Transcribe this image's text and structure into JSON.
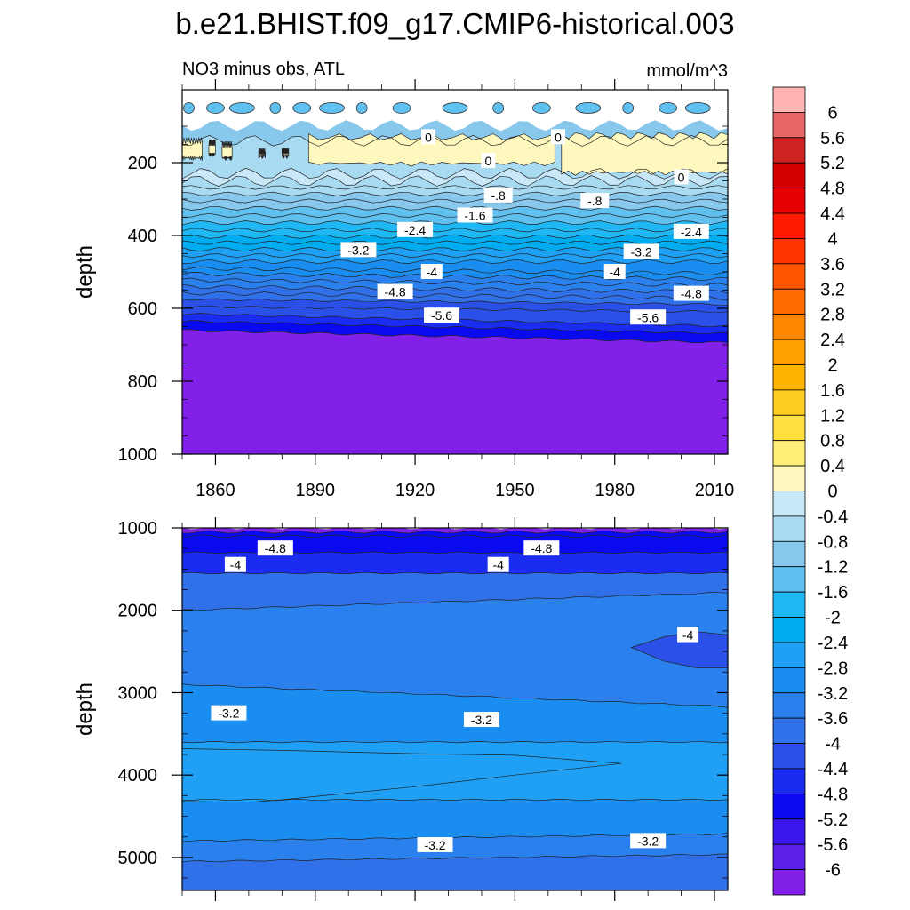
{
  "title": "b.e21.BHIST.f09_g17.CMIP6-historical.003",
  "chart_data": [
    {
      "type": "contour",
      "panel": "upper",
      "subtitle_left": "NO3 minus obs, ATL",
      "subtitle_right": "mmol/m^3",
      "ylabel": "depth",
      "xlabel": "",
      "xlim": [
        1850,
        2014
      ],
      "ylim": [
        1000,
        0
      ],
      "xticks": [
        1860,
        1890,
        1920,
        1950,
        1980,
        2010
      ],
      "yticks": [
        200,
        400,
        600,
        800,
        1000
      ],
      "contour_bands": [
        {
          "depth": 98,
          "value": -1.0
        },
        {
          "depth": 140,
          "value": -0.6
        },
        {
          "depth": 230,
          "value": -0.2
        },
        {
          "depth": 250,
          "value": -0.5
        },
        {
          "depth": 268,
          "value": -0.7
        },
        {
          "depth": 286,
          "value": -0.9
        },
        {
          "depth": 305,
          "value": -1.1
        },
        {
          "depth": 325,
          "value": -1.3
        },
        {
          "depth": 345,
          "value": -1.5
        },
        {
          "depth": 365,
          "value": -1.7
        },
        {
          "depth": 385,
          "value": -1.9
        },
        {
          "depth": 403,
          "value": -2.1
        },
        {
          "depth": 420,
          "value": -2.3
        },
        {
          "depth": 438,
          "value": -2.5
        },
        {
          "depth": 455,
          "value": -2.7
        },
        {
          "depth": 472,
          "value": -2.9
        },
        {
          "depth": 490,
          "value": -3.1
        },
        {
          "depth": 505,
          "value": -3.3
        },
        {
          "depth": 522,
          "value": -3.5
        },
        {
          "depth": 540,
          "value": -3.7
        },
        {
          "depth": 558,
          "value": -3.9
        },
        {
          "depth": 575,
          "value": -4.1
        },
        {
          "depth": 595,
          "value": -4.3
        },
        {
          "depth": 615,
          "value": -4.6
        },
        {
          "depth": 635,
          "value": -5.2
        },
        {
          "depth": 660,
          "value": -6.2
        }
      ],
      "contour_labels": [
        {
          "text": "0",
          "x": 1924,
          "y": 130
        },
        {
          "text": "0",
          "x": 1963,
          "y": 130
        },
        {
          "text": "0",
          "x": 1942,
          "y": 195
        },
        {
          "text": "0",
          "x": 2000,
          "y": 240
        },
        {
          "text": "-.8",
          "x": 1945,
          "y": 290
        },
        {
          "text": "-.8",
          "x": 1974,
          "y": 305
        },
        {
          "text": "-1.6",
          "x": 1938,
          "y": 345
        },
        {
          "text": "-2.4",
          "x": 1920,
          "y": 385
        },
        {
          "text": "-2.4",
          "x": 2003,
          "y": 390
        },
        {
          "text": "-3.2",
          "x": 1903,
          "y": 440
        },
        {
          "text": "-3.2",
          "x": 1988,
          "y": 445
        },
        {
          "text": "-4",
          "x": 1925,
          "y": 500
        },
        {
          "text": "-4",
          "x": 1980,
          "y": 500
        },
        {
          "text": "-4.8",
          "x": 1914,
          "y": 555
        },
        {
          "text": "-4.8",
          "x": 2003,
          "y": 560
        },
        {
          "text": "-5.6",
          "x": 1928,
          "y": 620
        },
        {
          "text": "-5.6",
          "x": 1990,
          "y": 625
        }
      ]
    },
    {
      "type": "contour",
      "panel": "lower",
      "ylabel": "depth",
      "xlabel": "",
      "xlim": [
        1850,
        2014
      ],
      "ylim": [
        5400,
        1000
      ],
      "yticks": [
        1000,
        2000,
        3000,
        4000,
        5000
      ],
      "contour_bands": [
        {
          "depth": 1000,
          "value": -6.2
        },
        {
          "depth": 1050,
          "value": -5.2
        },
        {
          "depth": 1100,
          "value": -4.9
        },
        {
          "depth": 1300,
          "value": -4.5
        },
        {
          "depth": 1550,
          "value": -3.8
        },
        {
          "depth": 2000,
          "value": -3.4
        },
        {
          "depth": 2900,
          "value": -3.0
        },
        {
          "depth": 3600,
          "value": -2.6
        },
        {
          "depth": 4300,
          "value": -3.0
        },
        {
          "depth": 4800,
          "value": -3.4
        },
        {
          "depth": 5050,
          "value": -3.8
        }
      ],
      "contour_labels": [
        {
          "text": "-4.8",
          "x": 1878,
          "y": 1250
        },
        {
          "text": "-4.8",
          "x": 1958,
          "y": 1250
        },
        {
          "text": "-4",
          "x": 1866,
          "y": 1450
        },
        {
          "text": "-4",
          "x": 1945,
          "y": 1450
        },
        {
          "text": "-4",
          "x": 2002,
          "y": 2300
        },
        {
          "text": "-3.2",
          "x": 1864,
          "y": 3250
        },
        {
          "text": "-3.2",
          "x": 1940,
          "y": 3330
        },
        {
          "text": "-3.2",
          "x": 1926,
          "y": 4850
        },
        {
          "text": "-3.2",
          "x": 1990,
          "y": 4800
        }
      ]
    }
  ],
  "colorbar": {
    "labels": [
      "6",
      "5.6",
      "5.2",
      "4.8",
      "4.4",
      "4",
      "3.6",
      "3.2",
      "2.8",
      "2.4",
      "2",
      "1.6",
      "1.2",
      "0.8",
      "0.4",
      "0",
      "-0.4",
      "-0.8",
      "-1.2",
      "-1.6",
      "-2",
      "-2.4",
      "-2.8",
      "-3.2",
      "-3.6",
      "-4",
      "-4.4",
      "-4.8",
      "-5.2",
      "-5.6",
      "-6"
    ],
    "colors": [
      "#FFB3B3",
      "#E66666",
      "#CC2222",
      "#D40000",
      "#E60000",
      "#FF1A00",
      "#FF3300",
      "#FF5500",
      "#FF6A00",
      "#FF8800",
      "#FFA000",
      "#FFB400",
      "#FFCC22",
      "#FFE040",
      "#FFF07A",
      "#FFF8BE",
      "#C8E8F8",
      "#A8DAF2",
      "#88C8EC",
      "#60C0F0",
      "#20B8F4",
      "#00ACF0",
      "#1FA0F4",
      "#1A8EF0",
      "#2A80EC",
      "#3070E8",
      "#2A50E8",
      "#1A2CF0",
      "#0A0AF0",
      "#3A18EC",
      "#5A20E8",
      "#8020E8"
    ]
  }
}
